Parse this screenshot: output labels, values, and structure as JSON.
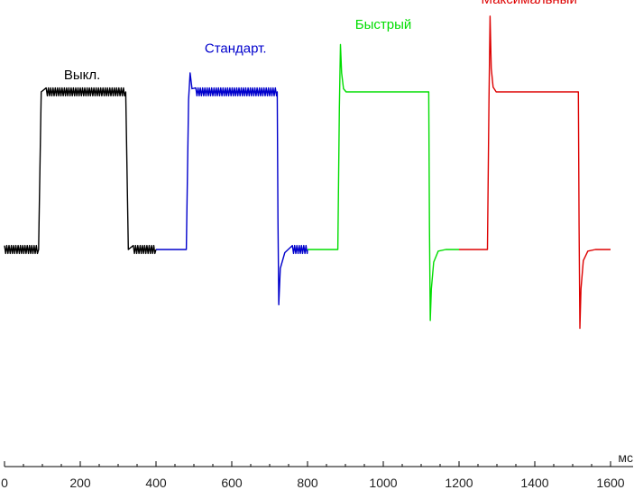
{
  "chart_data": {
    "type": "line",
    "xlabel": "мс",
    "xlim": [
      0,
      1600
    ],
    "x_ticks": [
      0,
      200,
      400,
      600,
      800,
      1000,
      1200,
      1400,
      1600
    ],
    "x_tick_labels": [
      "0",
      "200",
      "400",
      "600",
      "800",
      "1000",
      "1200",
      "1400",
      "1600"
    ],
    "ylim": [
      -0.95,
      1.3
    ],
    "y_axis_visible": false,
    "grid": false,
    "series": [
      {
        "name": "Выкл.",
        "color": "#000000",
        "x": [
          0,
          90,
          97,
          110,
          320,
          327,
          340,
          400
        ],
        "y": [
          0,
          0,
          1,
          1,
          1,
          0,
          0,
          0
        ],
        "ripple_segments": [
          [
            0,
            90
          ],
          [
            110,
            320
          ],
          [
            340,
            400
          ]
        ]
      },
      {
        "name": "Стандарт.",
        "color": "#0000cc",
        "x": [
          400,
          480,
          486,
          490,
          495,
          505,
          720,
          722,
          724,
          728,
          740,
          760,
          800
        ],
        "y": [
          0,
          0,
          0.95,
          1.12,
          1.02,
          1,
          1,
          0.2,
          -0.35,
          -0.12,
          -0.02,
          0,
          0
        ],
        "ripple_segments": [
          [
            505,
            720
          ],
          [
            740,
            800
          ]
        ]
      },
      {
        "name": "Быстрый",
        "color": "#00dd00",
        "x": [
          800,
          880,
          884,
          887,
          890,
          895,
          902,
          920,
          1120,
          1122,
          1124,
          1127,
          1133,
          1145,
          1165,
          1200
        ],
        "y": [
          0,
          0,
          0.9,
          1.3,
          1.12,
          1.02,
          1,
          1,
          1,
          0.15,
          -0.45,
          -0.25,
          -0.08,
          -0.01,
          0,
          0
        ],
        "ripple_segments": []
      },
      {
        "name": "Максимальный",
        "color": "#dd0000",
        "x": [
          1200,
          1275,
          1279,
          1282,
          1285,
          1290,
          1298,
          1315,
          1515,
          1517,
          1519,
          1522,
          1528,
          1540,
          1560,
          1600
        ],
        "y": [
          0,
          0,
          0.95,
          1.48,
          1.15,
          1.03,
          1,
          1,
          1,
          0.15,
          -0.5,
          -0.25,
          -0.07,
          -0.01,
          0,
          0
        ],
        "ripple_segments": []
      }
    ],
    "annotations": [
      {
        "text": "Выкл.",
        "x": 205,
        "y": 1.08,
        "color": "#000000"
      },
      {
        "text": "Стандарт.",
        "x": 610,
        "y": 1.25,
        "color": "#0000cc"
      },
      {
        "text": "Быстрый",
        "x": 1000,
        "y": 1.4,
        "color": "#00dd00"
      },
      {
        "text": "Максимальный",
        "x": 1385,
        "y": 1.56,
        "color": "#dd0000"
      }
    ]
  }
}
